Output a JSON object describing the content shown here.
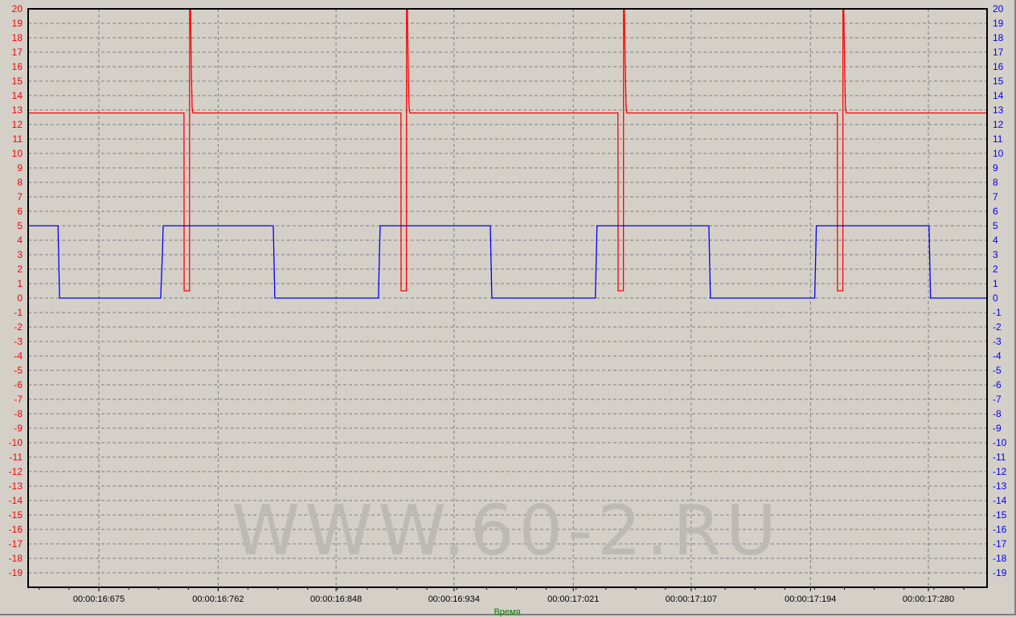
{
  "chart_data": {
    "type": "line",
    "title": "",
    "xlabel": "Время",
    "ylabel": "",
    "xlim": [
      16.6234,
      17.3228
    ],
    "ylim": [
      -20,
      20
    ],
    "grid": true,
    "legend": "none",
    "y_ticks": [
      20,
      19,
      18,
      17,
      16,
      15,
      14,
      13,
      12,
      11,
      10,
      9,
      8,
      7,
      6,
      5,
      4,
      3,
      2,
      1,
      0,
      -1,
      -2,
      -3,
      -4,
      -5,
      -6,
      -7,
      -8,
      -9,
      -10,
      -11,
      -12,
      -13,
      -14,
      -15,
      -16,
      -17,
      -18,
      -19
    ],
    "x_ticks": [
      {
        "value": 16.675,
        "label": "00:00:16:675"
      },
      {
        "value": 16.762,
        "label": "00:00:16:762"
      },
      {
        "value": 16.848,
        "label": "00:00:16:848"
      },
      {
        "value": 16.934,
        "label": "00:00:16:934"
      },
      {
        "value": 17.021,
        "label": "00:00:17:021"
      },
      {
        "value": 17.107,
        "label": "00:00:17:107"
      },
      {
        "value": 17.194,
        "label": "00:00:17:194"
      },
      {
        "value": 17.28,
        "label": "00:00:17:280"
      }
    ],
    "left_axis_color": "#ff0000",
    "right_axis_color": "#0000ff",
    "xlabel_color": "#008000",
    "background": "#d4d0c8",
    "watermark": "WWW.60-2.RU",
    "series": [
      {
        "color": "#ff0000",
        "points": [
          [
            16.6234,
            12.8
          ],
          [
            16.7371,
            12.8
          ],
          [
            16.7372,
            0.5
          ],
          [
            16.7411,
            0.5
          ],
          [
            16.7412,
            20
          ],
          [
            16.7418,
            20
          ],
          [
            16.7424,
            16
          ],
          [
            16.743,
            13.2
          ],
          [
            16.7436,
            12.8
          ],
          [
            16.8953,
            12.8
          ],
          [
            16.8954,
            0.5
          ],
          [
            16.8993,
            0.5
          ],
          [
            16.8994,
            20
          ],
          [
            16.9,
            20
          ],
          [
            16.9006,
            16
          ],
          [
            16.9012,
            13.2
          ],
          [
            16.9018,
            12.8
          ],
          [
            17.0536,
            12.8
          ],
          [
            17.0537,
            0.5
          ],
          [
            17.0576,
            0.5
          ],
          [
            17.0577,
            20
          ],
          [
            17.0583,
            20
          ],
          [
            17.0589,
            16
          ],
          [
            17.0595,
            13.2
          ],
          [
            17.0601,
            12.8
          ],
          [
            17.2136,
            12.8
          ],
          [
            17.2137,
            0.5
          ],
          [
            17.2176,
            0.5
          ],
          [
            17.2177,
            20
          ],
          [
            17.2183,
            20
          ],
          [
            17.2189,
            16
          ],
          [
            17.2195,
            13.2
          ],
          [
            17.2201,
            12.8
          ],
          [
            17.3228,
            12.8
          ]
        ]
      },
      {
        "color": "#0000ff",
        "points": [
          [
            16.6234,
            5
          ],
          [
            16.6452,
            5
          ],
          [
            16.6463,
            0
          ],
          [
            16.7201,
            0
          ],
          [
            16.7213,
            3
          ],
          [
            16.7219,
            5
          ],
          [
            16.8022,
            5
          ],
          [
            16.8033,
            0
          ],
          [
            16.8789,
            0
          ],
          [
            16.8801,
            5
          ],
          [
            16.9605,
            5
          ],
          [
            16.9616,
            0
          ],
          [
            17.0371,
            0
          ],
          [
            17.0383,
            5
          ],
          [
            17.1199,
            5
          ],
          [
            17.121,
            0
          ],
          [
            17.1971,
            0
          ],
          [
            17.1983,
            5
          ],
          [
            17.2805,
            5
          ],
          [
            17.2816,
            0
          ],
          [
            17.3228,
            0
          ]
        ]
      }
    ]
  }
}
